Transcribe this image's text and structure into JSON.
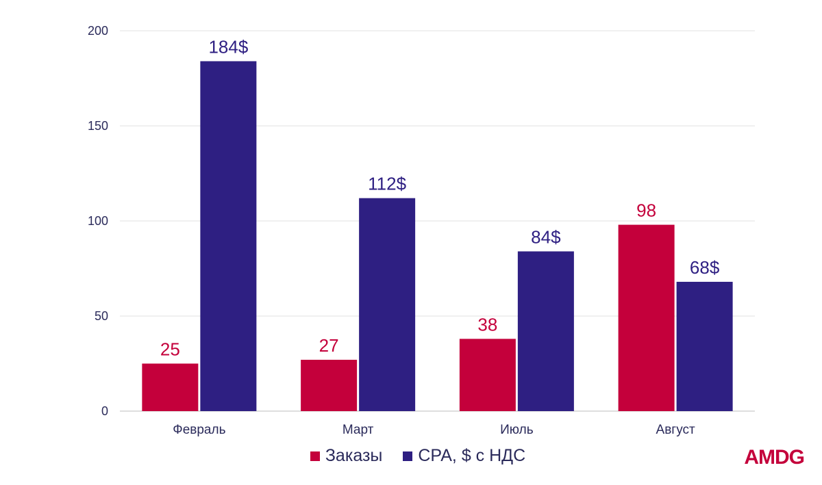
{
  "chart_data": {
    "type": "bar",
    "categories": [
      "Февраль",
      "Март",
      "Июль",
      "Август"
    ],
    "series": [
      {
        "name": "Заказы",
        "color": "#c4003b",
        "values": [
          25,
          27,
          38,
          98
        ],
        "labels": [
          "25",
          "27",
          "38",
          "98"
        ]
      },
      {
        "name": "CPA, $ с НДС",
        "color": "#2e1f82",
        "values": [
          184,
          112,
          84,
          68
        ],
        "labels": [
          "184$",
          "112$",
          "84$",
          "68$"
        ]
      }
    ],
    "ylim": [
      0,
      200
    ],
    "yticks": [
      0,
      50,
      100,
      150,
      200
    ],
    "grid": true,
    "legend_position": "bottom"
  },
  "brand": {
    "logo_text": "AMDG",
    "color": "#c4003b"
  }
}
